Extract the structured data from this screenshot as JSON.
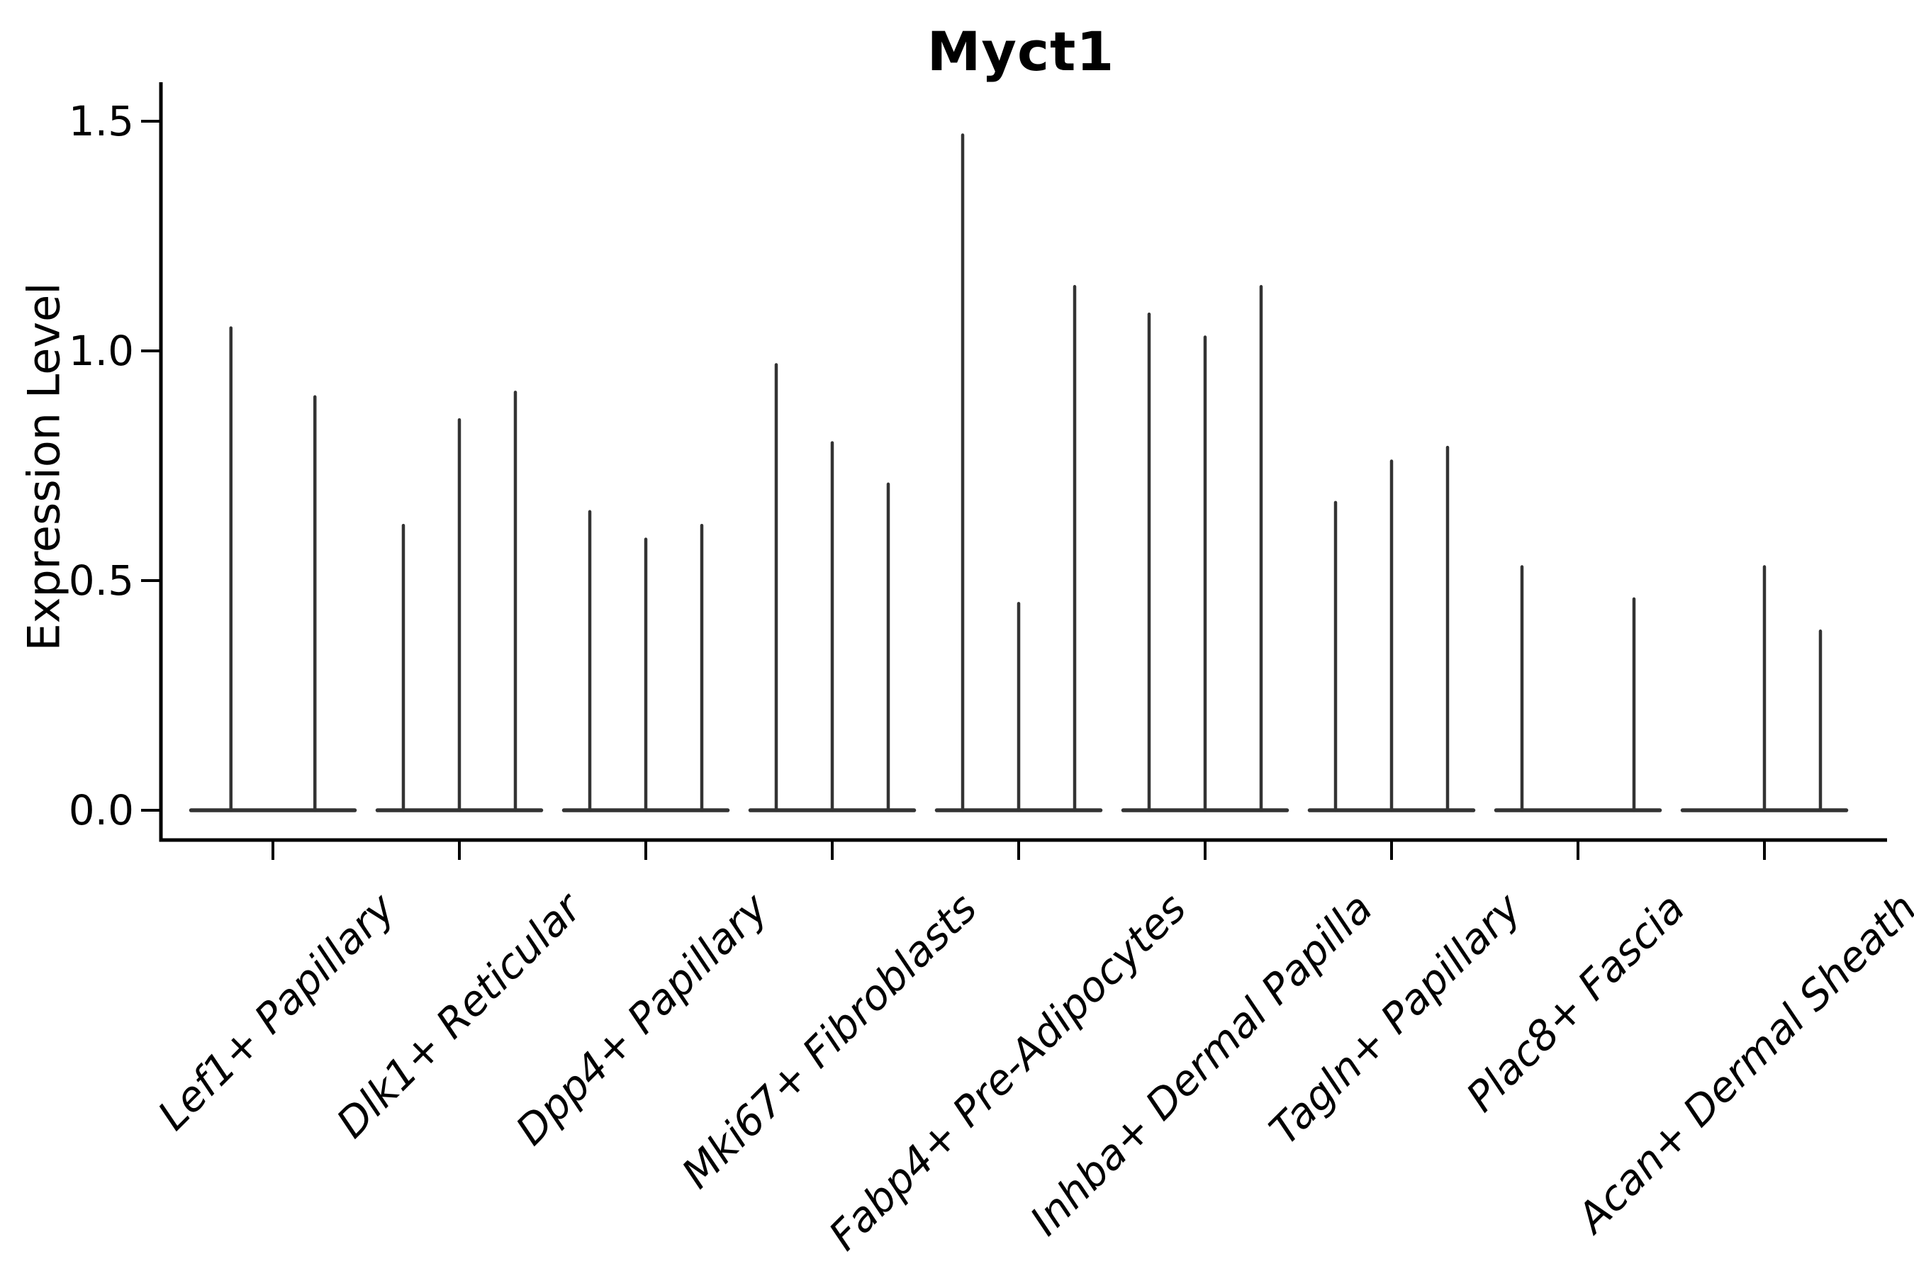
{
  "title": "Myct1",
  "chart_data": {
    "type": "violin",
    "title": "Myct1",
    "xlabel": "",
    "ylabel": "Expression Level",
    "ylim": [
      0,
      1.5
    ],
    "yticks": [
      0,
      0.5,
      1.0,
      1.5
    ],
    "ytick_labels": [
      "0.0",
      "0.5",
      "1.0",
      "1.5"
    ],
    "grid": false,
    "legend_position": "none",
    "violin_color": "#333333",
    "axis_color": "#000000",
    "background_color": "#ffffff",
    "categories": [
      "Lef1+ Papillary",
      "Dlk1+ Reticular",
      "Dpp4+ Papillary",
      "Mki67+ Fibroblasts",
      "Fabp4+ Pre-Adipocytes",
      "Inhba+ Dermal Papilla",
      "Tagln+ Papillary",
      "Plac8+ Fascia",
      "Acan+ Dermal Sheath"
    ],
    "groups": [
      {
        "category": "Lef1+ Papillary",
        "violin_max_expression": [
          1.05,
          0.9
        ]
      },
      {
        "category": "Dlk1+ Reticular",
        "violin_max_expression": [
          0.62,
          0.85,
          0.91
        ]
      },
      {
        "category": "Dpp4+ Papillary",
        "violin_max_expression": [
          0.65,
          0.59,
          0.62
        ]
      },
      {
        "category": "Mki67+ Fibroblasts",
        "violin_max_expression": [
          0.97,
          0.8,
          0.71
        ]
      },
      {
        "category": "Fabp4+ Pre-Adipocytes",
        "violin_max_expression": [
          1.47,
          0.45,
          1.14
        ]
      },
      {
        "category": "Inhba+ Dermal Papilla",
        "violin_max_expression": [
          1.08,
          1.03,
          1.14
        ]
      },
      {
        "category": "Tagln+ Papillary",
        "violin_max_expression": [
          0.67,
          0.76,
          0.79
        ]
      },
      {
        "category": "Plac8+ Fascia",
        "violin_max_expression": [
          0.53,
          0.0,
          0.46
        ]
      },
      {
        "category": "Acan+ Dermal Sheath",
        "violin_max_expression": [
          0.0,
          0.53,
          0.39
        ]
      }
    ],
    "violin_shape_note": "each violin is flat at expression 0 with a thin vertical spike up to its max value; 0 means fully flat violin"
  }
}
